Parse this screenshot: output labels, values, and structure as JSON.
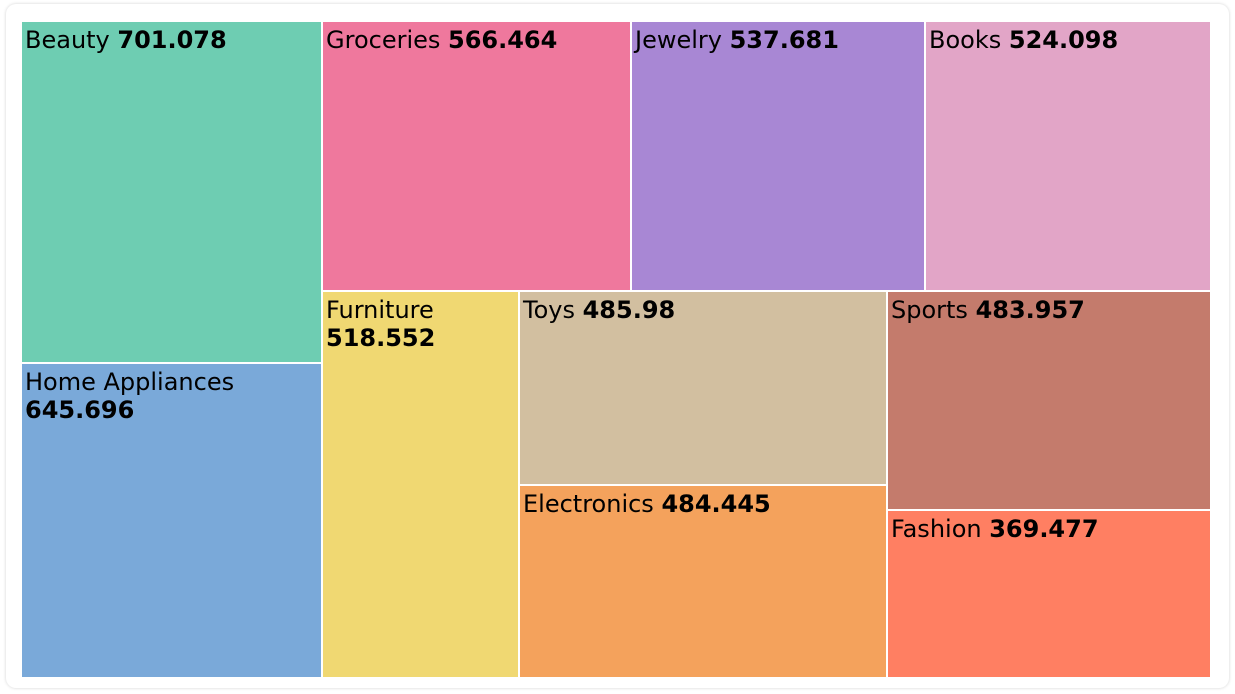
{
  "chart_data": {
    "type": "treemap",
    "items": [
      {
        "name": "Beauty",
        "value": "701.078",
        "color": "#6ecdb2"
      },
      {
        "name": "Groceries",
        "value": "566.464",
        "color": "#ef789d"
      },
      {
        "name": "Jewelry",
        "value": "537.681",
        "color": "#a887d4"
      },
      {
        "name": "Books",
        "value": "524.098",
        "color": "#e2a5c7"
      },
      {
        "name": "Home Appliances",
        "value": "645.696",
        "color": "#7aa9d9"
      },
      {
        "name": "Furniture",
        "value": "518.552",
        "color": "#f0d872"
      },
      {
        "name": "Toys",
        "value": "485.98",
        "color": "#d2bfa0"
      },
      {
        "name": "Sports",
        "value": "483.957",
        "color": "#c47b6c"
      },
      {
        "name": "Electronics",
        "value": "484.445",
        "color": "#f4a25c"
      },
      {
        "name": "Fashion",
        "value": "369.477",
        "color": "#ff7f62"
      }
    ]
  }
}
